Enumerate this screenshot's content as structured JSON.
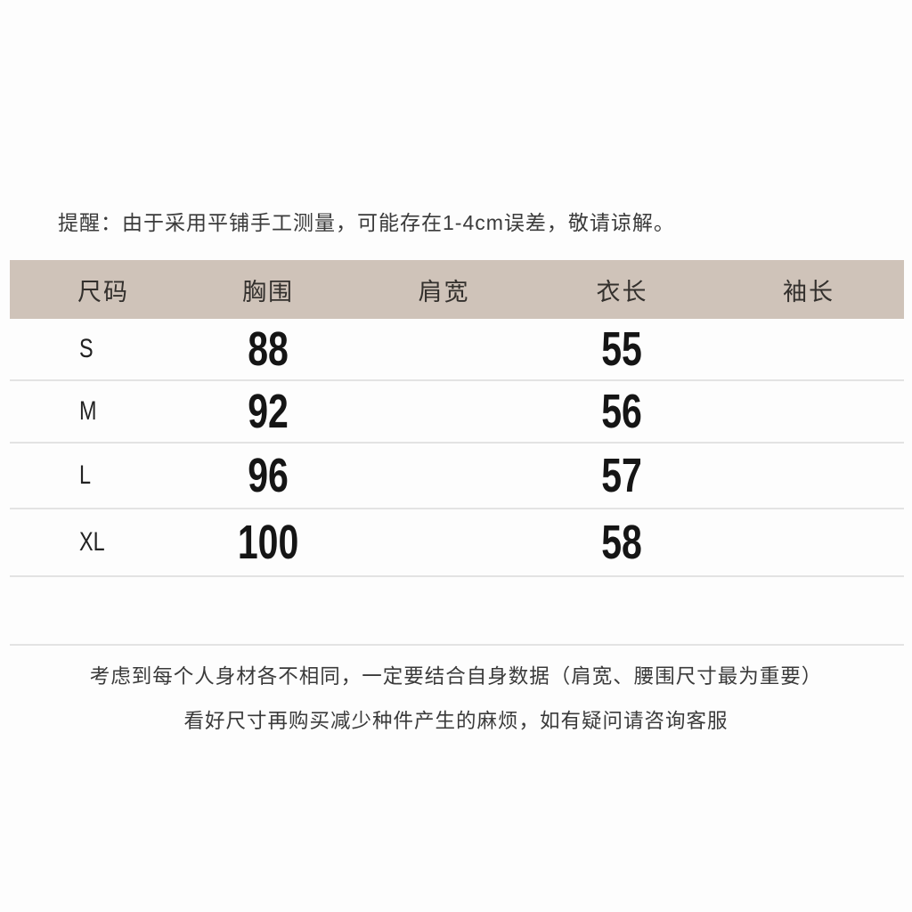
{
  "colors": {
    "header_bg": "#cfc3b9",
    "divider": "#e3e3e3",
    "text_dark": "#2e2e2e",
    "number": "#151515",
    "page_bg": "#fdfdfd"
  },
  "reminder": "提醒：由于采用平铺手工测量，可能存在1-4cm误差，敬请谅解。",
  "table": {
    "headers": [
      "尺码",
      "胸围",
      "肩宽",
      "衣长",
      "袖长"
    ],
    "rows": [
      {
        "size": "S",
        "chest": "88",
        "shoulder": "",
        "length": "55",
        "sleeve": ""
      },
      {
        "size": "M",
        "chest": "92",
        "shoulder": "",
        "length": "56",
        "sleeve": ""
      },
      {
        "size": "L",
        "chest": "96",
        "shoulder": "",
        "length": "57",
        "sleeve": ""
      },
      {
        "size": "XL",
        "chest": "100",
        "shoulder": "",
        "length": "58",
        "sleeve": ""
      }
    ]
  },
  "notes": [
    "考虑到每个人身材各不相同，一定要结合自身数据（肩宽、腰围尺寸最为重要）",
    "看好尺寸再购买减少种件产生的麻烦，如有疑问请咨询客服"
  ]
}
